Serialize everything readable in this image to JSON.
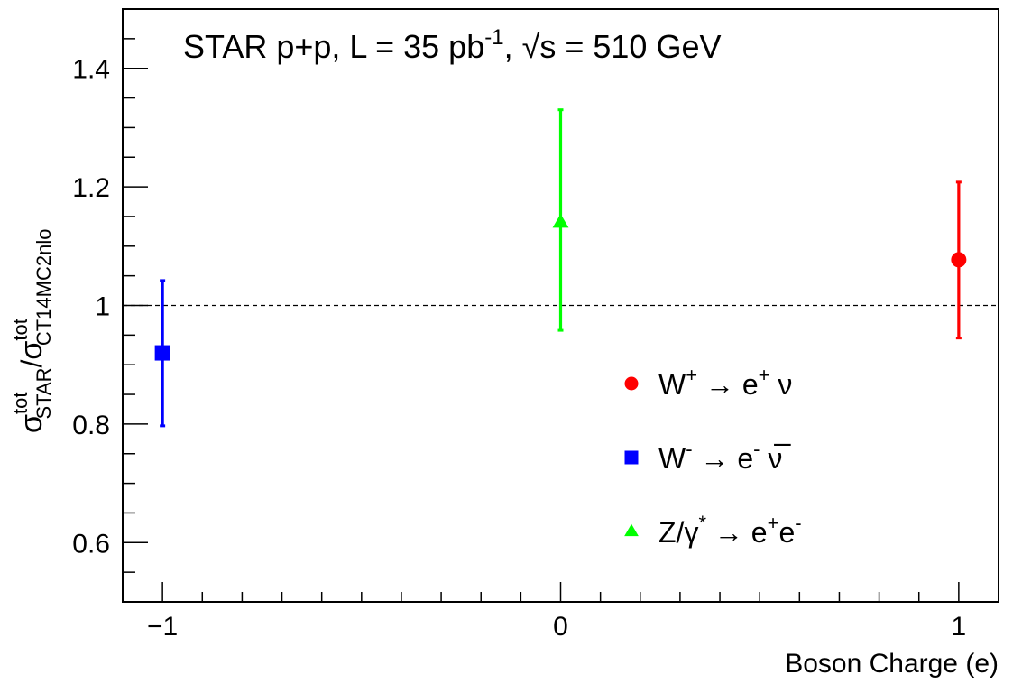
{
  "chart_data": {
    "type": "scatter",
    "title": {
      "main": "STAR p+p, L = 35 pb",
      "lumi_exponent": "-1",
      "sep": ", ",
      "sqrt_symbol": "√",
      "energy": "s = 510 GeV"
    },
    "xlabel": "Boson Charge (e)",
    "ylabel": {
      "sigma": "σ",
      "num_sup": "tot",
      "num_sub": "STAR",
      "slash": "/",
      "den_sup": "tot",
      "den_sub": "CT14MC2nlo"
    },
    "xlim": [
      -1.1,
      1.1
    ],
    "ylim": [
      0.5,
      1.5
    ],
    "x_ticks": [
      -1,
      0,
      1
    ],
    "x_tick_labels": [
      "−1",
      "0",
      "1"
    ],
    "y_ticks": [
      0.6,
      0.8,
      1.0,
      1.2,
      1.4
    ],
    "y_tick_labels": [
      "0.6",
      "0.8",
      "1",
      "1.2",
      "1.4"
    ],
    "reference_line": 1.0,
    "grid": false,
    "legend_position": "lower-right",
    "series": [
      {
        "marker": "circle",
        "color": "#ff0000",
        "x": 1,
        "y": 1.077,
        "err_low": 0.945,
        "err_high": 1.208,
        "legend": {
          "a": "W",
          "a_sup": "+",
          "arrow": " → ",
          "b": "e",
          "b_sup": "+",
          "c": " ν"
        }
      },
      {
        "marker": "square",
        "color": "#0000ff",
        "x": -1,
        "y": 0.92,
        "err_low": 0.797,
        "err_high": 1.042,
        "legend": {
          "a": "W",
          "a_sup": "-",
          "arrow": " → ",
          "b": "e",
          "b_sup": "-",
          "c": " ν̅"
        }
      },
      {
        "marker": "triangle",
        "color": "#00ff00",
        "x": 0,
        "y": 1.14,
        "err_low": 0.958,
        "err_high": 1.33,
        "legend": {
          "a": "Z/γ",
          "a_sup": "*",
          "arrow": " → ",
          "b": "e",
          "b_sup": "+",
          "c": "e",
          "c_sup": "-"
        }
      }
    ]
  }
}
